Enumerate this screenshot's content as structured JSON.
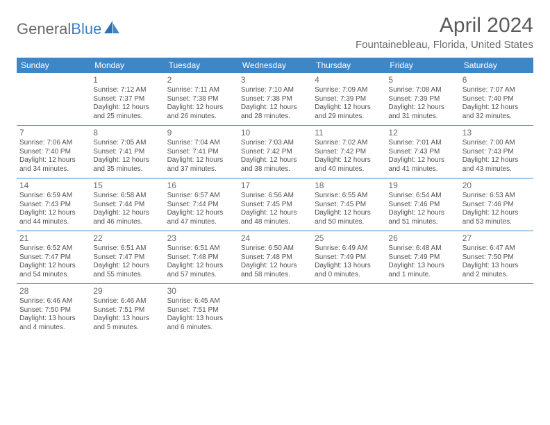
{
  "brand": {
    "word1": "General",
    "word2": "Blue"
  },
  "colors": {
    "accent": "#3d87c9",
    "text": "#505050",
    "heading": "#5a5a5a",
    "brand_gray": "#6a6a6a",
    "brand_blue": "#3a7fc4",
    "white": "#ffffff"
  },
  "title": "April 2024",
  "location": "Fountainebleau, Florida, United States",
  "weekdays": [
    "Sunday",
    "Monday",
    "Tuesday",
    "Wednesday",
    "Thursday",
    "Friday",
    "Saturday"
  ],
  "weeks": [
    [
      {
        "num": "",
        "lines": []
      },
      {
        "num": "1",
        "lines": [
          "Sunrise: 7:12 AM",
          "Sunset: 7:37 PM",
          "Daylight: 12 hours",
          "and 25 minutes."
        ]
      },
      {
        "num": "2",
        "lines": [
          "Sunrise: 7:11 AM",
          "Sunset: 7:38 PM",
          "Daylight: 12 hours",
          "and 26 minutes."
        ]
      },
      {
        "num": "3",
        "lines": [
          "Sunrise: 7:10 AM",
          "Sunset: 7:38 PM",
          "Daylight: 12 hours",
          "and 28 minutes."
        ]
      },
      {
        "num": "4",
        "lines": [
          "Sunrise: 7:09 AM",
          "Sunset: 7:39 PM",
          "Daylight: 12 hours",
          "and 29 minutes."
        ]
      },
      {
        "num": "5",
        "lines": [
          "Sunrise: 7:08 AM",
          "Sunset: 7:39 PM",
          "Daylight: 12 hours",
          "and 31 minutes."
        ]
      },
      {
        "num": "6",
        "lines": [
          "Sunrise: 7:07 AM",
          "Sunset: 7:40 PM",
          "Daylight: 12 hours",
          "and 32 minutes."
        ]
      }
    ],
    [
      {
        "num": "7",
        "lines": [
          "Sunrise: 7:06 AM",
          "Sunset: 7:40 PM",
          "Daylight: 12 hours",
          "and 34 minutes."
        ]
      },
      {
        "num": "8",
        "lines": [
          "Sunrise: 7:05 AM",
          "Sunset: 7:41 PM",
          "Daylight: 12 hours",
          "and 35 minutes."
        ]
      },
      {
        "num": "9",
        "lines": [
          "Sunrise: 7:04 AM",
          "Sunset: 7:41 PM",
          "Daylight: 12 hours",
          "and 37 minutes."
        ]
      },
      {
        "num": "10",
        "lines": [
          "Sunrise: 7:03 AM",
          "Sunset: 7:42 PM",
          "Daylight: 12 hours",
          "and 38 minutes."
        ]
      },
      {
        "num": "11",
        "lines": [
          "Sunrise: 7:02 AM",
          "Sunset: 7:42 PM",
          "Daylight: 12 hours",
          "and 40 minutes."
        ]
      },
      {
        "num": "12",
        "lines": [
          "Sunrise: 7:01 AM",
          "Sunset: 7:43 PM",
          "Daylight: 12 hours",
          "and 41 minutes."
        ]
      },
      {
        "num": "13",
        "lines": [
          "Sunrise: 7:00 AM",
          "Sunset: 7:43 PM",
          "Daylight: 12 hours",
          "and 43 minutes."
        ]
      }
    ],
    [
      {
        "num": "14",
        "lines": [
          "Sunrise: 6:59 AM",
          "Sunset: 7:43 PM",
          "Daylight: 12 hours",
          "and 44 minutes."
        ]
      },
      {
        "num": "15",
        "lines": [
          "Sunrise: 6:58 AM",
          "Sunset: 7:44 PM",
          "Daylight: 12 hours",
          "and 46 minutes."
        ]
      },
      {
        "num": "16",
        "lines": [
          "Sunrise: 6:57 AM",
          "Sunset: 7:44 PM",
          "Daylight: 12 hours",
          "and 47 minutes."
        ]
      },
      {
        "num": "17",
        "lines": [
          "Sunrise: 6:56 AM",
          "Sunset: 7:45 PM",
          "Daylight: 12 hours",
          "and 48 minutes."
        ]
      },
      {
        "num": "18",
        "lines": [
          "Sunrise: 6:55 AM",
          "Sunset: 7:45 PM",
          "Daylight: 12 hours",
          "and 50 minutes."
        ]
      },
      {
        "num": "19",
        "lines": [
          "Sunrise: 6:54 AM",
          "Sunset: 7:46 PM",
          "Daylight: 12 hours",
          "and 51 minutes."
        ]
      },
      {
        "num": "20",
        "lines": [
          "Sunrise: 6:53 AM",
          "Sunset: 7:46 PM",
          "Daylight: 12 hours",
          "and 53 minutes."
        ]
      }
    ],
    [
      {
        "num": "21",
        "lines": [
          "Sunrise: 6:52 AM",
          "Sunset: 7:47 PM",
          "Daylight: 12 hours",
          "and 54 minutes."
        ]
      },
      {
        "num": "22",
        "lines": [
          "Sunrise: 6:51 AM",
          "Sunset: 7:47 PM",
          "Daylight: 12 hours",
          "and 55 minutes."
        ]
      },
      {
        "num": "23",
        "lines": [
          "Sunrise: 6:51 AM",
          "Sunset: 7:48 PM",
          "Daylight: 12 hours",
          "and 57 minutes."
        ]
      },
      {
        "num": "24",
        "lines": [
          "Sunrise: 6:50 AM",
          "Sunset: 7:48 PM",
          "Daylight: 12 hours",
          "and 58 minutes."
        ]
      },
      {
        "num": "25",
        "lines": [
          "Sunrise: 6:49 AM",
          "Sunset: 7:49 PM",
          "Daylight: 13 hours",
          "and 0 minutes."
        ]
      },
      {
        "num": "26",
        "lines": [
          "Sunrise: 6:48 AM",
          "Sunset: 7:49 PM",
          "Daylight: 13 hours",
          "and 1 minute."
        ]
      },
      {
        "num": "27",
        "lines": [
          "Sunrise: 6:47 AM",
          "Sunset: 7:50 PM",
          "Daylight: 13 hours",
          "and 2 minutes."
        ]
      }
    ],
    [
      {
        "num": "28",
        "lines": [
          "Sunrise: 6:46 AM",
          "Sunset: 7:50 PM",
          "Daylight: 13 hours",
          "and 4 minutes."
        ]
      },
      {
        "num": "29",
        "lines": [
          "Sunrise: 6:46 AM",
          "Sunset: 7:51 PM",
          "Daylight: 13 hours",
          "and 5 minutes."
        ]
      },
      {
        "num": "30",
        "lines": [
          "Sunrise: 6:45 AM",
          "Sunset: 7:51 PM",
          "Daylight: 13 hours",
          "and 6 minutes."
        ]
      },
      {
        "num": "",
        "lines": []
      },
      {
        "num": "",
        "lines": []
      },
      {
        "num": "",
        "lines": []
      },
      {
        "num": "",
        "lines": []
      }
    ]
  ]
}
